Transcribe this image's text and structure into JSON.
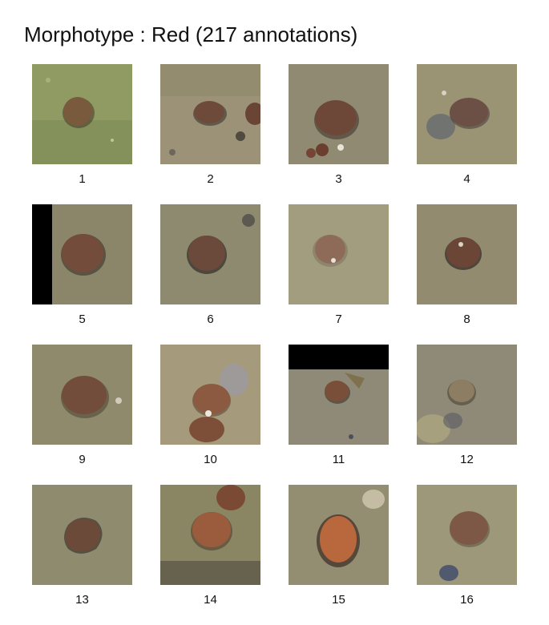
{
  "title": "Morphotype : Red (217 annotations)",
  "thumbnails": [
    {
      "label": "1",
      "bg": "#8f9b63",
      "nodule": "#7a5a3c",
      "rim": "#3d3a2a"
    },
    {
      "label": "2",
      "bg": "#9b9277",
      "nodule": "#6e4a3b",
      "rim": "#3a332b"
    },
    {
      "label": "3",
      "bg": "#918a72",
      "nodule": "#6d4838",
      "rim": "#3b302a"
    },
    {
      "label": "4",
      "bg": "#9a9374",
      "nodule": "#6c4f45",
      "rim": "#3a3432"
    },
    {
      "label": "5",
      "bg": "#8b8669",
      "nodule": "#744c3c",
      "rim": "#37322a"
    },
    {
      "label": "6",
      "bg": "#8e8a6f",
      "nodule": "#6b4a3b",
      "rim": "#2f2c2a"
    },
    {
      "label": "7",
      "bg": "#a39d7f",
      "nodule": "#8d6b58",
      "rim": "#6e624f"
    },
    {
      "label": "8",
      "bg": "#938b70",
      "nodule": "#6b4636",
      "rim": "#302a24"
    },
    {
      "label": "9",
      "bg": "#8f8a6c",
      "nodule": "#734d3c",
      "rim": "#4a4133"
    },
    {
      "label": "10",
      "bg": "#a59a7b",
      "nodule": "#8b5a40",
      "rim": "#4d3a2e"
    },
    {
      "label": "11",
      "bg": "#8e8a77",
      "nodule": "#7a4f39",
      "rim": "#3b332c"
    },
    {
      "label": "12",
      "bg": "#8e8a77",
      "nodule": "#8d7d62",
      "rim": "#4a4336"
    },
    {
      "label": "13",
      "bg": "#8f8b6f",
      "nodule": "#6b4a3a",
      "rim": "#2f2a25"
    },
    {
      "label": "14",
      "bg": "#8a8563",
      "nodule": "#9a5c3c",
      "rim": "#4a3a2a"
    },
    {
      "label": "15",
      "bg": "#938d72",
      "nodule": "#b9673d",
      "rim": "#3a2a22"
    },
    {
      "label": "16",
      "bg": "#9d9879",
      "nodule": "#7e5846",
      "rim": "#4b4236"
    }
  ]
}
